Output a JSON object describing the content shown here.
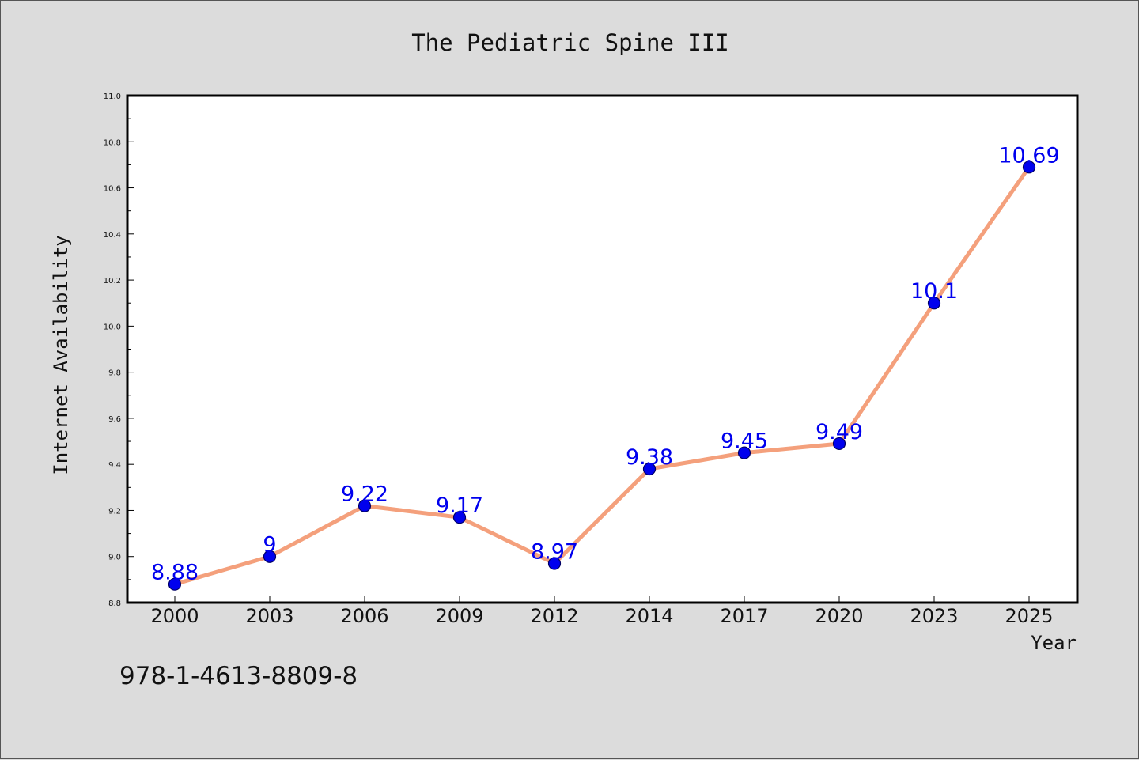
{
  "chart_data": {
    "type": "line",
    "title": "The Pediatric Spine III",
    "xlabel": "Year",
    "ylabel": "Internet Availability",
    "categories": [
      "2000",
      "2003",
      "2006",
      "2009",
      "2012",
      "2014",
      "2017",
      "2020",
      "2023",
      "2025"
    ],
    "values": [
      8.88,
      9,
      9.22,
      9.17,
      8.97,
      9.38,
      9.45,
      9.49,
      10.1,
      10.69
    ],
    "data_labels": [
      "8.88",
      "9",
      "9.22",
      "9.17",
      "8.97",
      "9.38",
      "9.45",
      "9.49",
      "10.1",
      "10.69"
    ],
    "ylim": [
      8.8,
      11.0
    ],
    "yticks": [
      "8.8",
      "9.0",
      "9.2",
      "9.4",
      "9.6",
      "9.8",
      "10.0",
      "10.2",
      "10.4",
      "10.6",
      "10.8",
      "11.0"
    ],
    "grid": false,
    "legend": "none",
    "colors": {
      "line": "#f4a07c",
      "marker_fill": "#0000ee",
      "marker_edge": "#000066",
      "data_label": "#0000ee",
      "background": "#dcdcdc",
      "plot_area": "#ffffff"
    }
  },
  "footer_text": "978-1-4613-8809-8"
}
